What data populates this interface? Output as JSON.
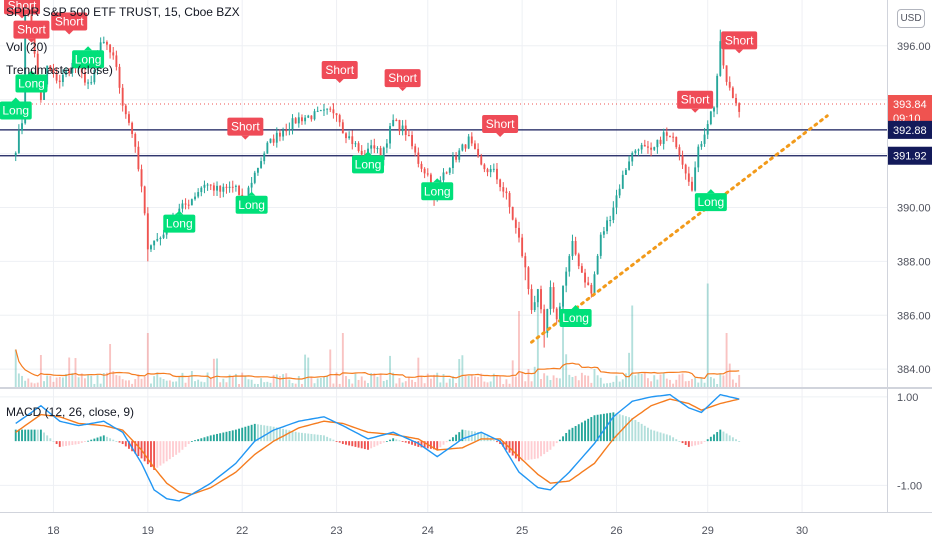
{
  "header": {
    "symbol_line": "SPDR S&P 500 ETF TRUST, 15, Cboe BZX",
    "volume_label": "Vol (20)",
    "indicator_label": "Trendmaster (close)",
    "macd_label": "MACD (12, 26, close, 9)",
    "currency_button": "USD"
  },
  "colors": {
    "up": "#26a69a",
    "down": "#ef5350",
    "long_badge": "#00e07a",
    "short_badge": "#ef4b57",
    "level_line": "#131a5a",
    "trend_line": "#f29a1a",
    "macd_line": "#2196f3",
    "signal_line": "#f57c1f",
    "volume_ma": "#f57c1f",
    "last_price": "#ef5350"
  },
  "chart_data": [
    {
      "type": "candlestick",
      "name": "price",
      "ylim": [
        383.3,
        397.7
      ],
      "y_ticks": [
        384,
        386,
        388,
        390,
        392,
        394,
        396
      ],
      "y_tick_labels": [
        "384.00",
        "386.00",
        "388.00",
        "390.00",
        "392.00",
        "394.00",
        "396.00"
      ],
      "x_labels": [
        "18",
        "19",
        "22",
        "23",
        "24",
        "25",
        "26",
        "29",
        "30"
      ],
      "x_label_index": [
        12,
        42,
        72,
        102,
        131,
        161,
        191,
        220,
        250
      ],
      "index_range": [
        -5,
        277
      ],
      "path": [
        [
          0,
          392.2
        ],
        [
          2,
          393.2
        ],
        [
          3,
          397.4
        ],
        [
          5,
          396.7
        ],
        [
          8,
          393.9
        ],
        [
          10,
          395.2
        ],
        [
          12,
          394.9
        ],
        [
          14,
          394.7
        ],
        [
          18,
          395.3
        ],
        [
          24,
          394.5
        ],
        [
          27,
          396.1
        ],
        [
          31,
          395.7
        ],
        [
          34,
          393.9
        ],
        [
          37,
          392.8
        ],
        [
          40,
          390.7
        ],
        [
          42,
          388.6
        ],
        [
          46,
          388.9
        ],
        [
          50,
          389.7
        ],
        [
          55,
          390.2
        ],
        [
          60,
          390.9
        ],
        [
          65,
          390.6
        ],
        [
          70,
          390.8
        ],
        [
          72,
          390.0
        ],
        [
          75,
          391.0
        ],
        [
          80,
          392.3
        ],
        [
          85,
          392.9
        ],
        [
          90,
          393.3
        ],
        [
          98,
          393.5
        ],
        [
          102,
          393.6
        ],
        [
          104,
          392.9
        ],
        [
          108,
          392.3
        ],
        [
          111,
          391.7
        ],
        [
          113,
          392.4
        ],
        [
          116,
          391.9
        ],
        [
          120,
          393.2
        ],
        [
          124,
          392.8
        ],
        [
          128,
          391.7
        ],
        [
          131,
          391.2
        ],
        [
          133,
          390.2
        ],
        [
          136,
          391.3
        ],
        [
          140,
          391.9
        ],
        [
          144,
          392.5
        ],
        [
          148,
          391.5
        ],
        [
          152,
          391.3
        ],
        [
          156,
          390.4
        ],
        [
          160,
          388.8
        ],
        [
          162,
          387.7
        ],
        [
          164,
          386.3
        ],
        [
          166,
          386.8
        ],
        [
          168,
          385.3
        ],
        [
          170,
          386.9
        ],
        [
          172,
          385.8
        ],
        [
          174,
          387.1
        ],
        [
          177,
          388.6
        ],
        [
          180,
          387.6
        ],
        [
          183,
          386.8
        ],
        [
          186,
          388.9
        ],
        [
          189,
          389.7
        ],
        [
          192,
          390.8
        ],
        [
          195,
          391.8
        ],
        [
          198,
          392.3
        ],
        [
          202,
          392.0
        ],
        [
          206,
          392.7
        ],
        [
          210,
          392.4
        ],
        [
          213,
          391.4
        ],
        [
          215,
          390.8
        ],
        [
          217,
          392.1
        ],
        [
          220,
          393.2
        ],
        [
          222,
          393.8
        ],
        [
          224,
          396.0
        ],
        [
          226,
          394.6
        ],
        [
          228,
          394.1
        ],
        [
          230,
          393.7
        ]
      ],
      "high_spikes": [
        [
          3,
          397.5
        ],
        [
          224,
          396.6
        ]
      ],
      "low_spikes": [
        [
          42,
          388.0
        ],
        [
          162,
          387.3
        ],
        [
          168,
          384.8
        ]
      ],
      "last_price": 393.84,
      "last_price_label": "393.84",
      "countdown": "09:10",
      "levels": [
        {
          "value": 392.88,
          "label": "392.88"
        },
        {
          "value": 391.92,
          "label": "391.92"
        }
      ],
      "trend_line": [
        [
          164,
          385.0
        ],
        [
          258,
          393.4
        ]
      ],
      "signals": [
        {
          "type": "short",
          "label": "Short",
          "i": 2,
          "price": 397.5
        },
        {
          "type": "short",
          "label": "Short",
          "i": 5,
          "price": 396.6
        },
        {
          "type": "short",
          "label": "Short",
          "i": 17,
          "price": 396.9
        },
        {
          "type": "long",
          "label": "Long",
          "i": 5,
          "price": 394.6
        },
        {
          "type": "long",
          "label": "Long",
          "i": 23,
          "price": 395.5
        },
        {
          "type": "long",
          "label": "Long",
          "i": 0,
          "price": 393.6
        },
        {
          "type": "long",
          "label": "Long",
          "i": 52,
          "price": 389.4
        },
        {
          "type": "long",
          "label": "Long",
          "i": 75,
          "price": 390.1
        },
        {
          "type": "short",
          "label": "Short",
          "i": 73,
          "price": 393.0
        },
        {
          "type": "short",
          "label": "Short",
          "i": 103,
          "price": 395.1
        },
        {
          "type": "long",
          "label": "Long",
          "i": 112,
          "price": 391.6
        },
        {
          "type": "short",
          "label": "Short",
          "i": 123,
          "price": 394.8
        },
        {
          "type": "long",
          "label": "Long",
          "i": 134,
          "price": 390.6
        },
        {
          "type": "short",
          "label": "Short",
          "i": 154,
          "price": 393.1
        },
        {
          "type": "long",
          "label": "Long",
          "i": 178,
          "price": 385.9
        },
        {
          "type": "short",
          "label": "Short",
          "i": 216,
          "price": 394.0
        },
        {
          "type": "long",
          "label": "Long",
          "i": 221,
          "price": 390.2
        },
        {
          "type": "short",
          "label": "Short",
          "i": 230,
          "price": 396.2
        }
      ]
    },
    {
      "type": "bar",
      "name": "volume",
      "high_volume_bars": [
        [
          0,
          0.35
        ],
        [
          8,
          0.3
        ],
        [
          30,
          0.4
        ],
        [
          42,
          0.5
        ],
        [
          100,
          0.35
        ],
        [
          104,
          0.5
        ],
        [
          160,
          0.7
        ],
        [
          166,
          0.85
        ],
        [
          174,
          0.75
        ],
        [
          196,
          0.75
        ],
        [
          220,
          0.95
        ],
        [
          226,
          0.5
        ]
      ],
      "base_level": 0.12
    },
    {
      "type": "line",
      "name": "macd",
      "ylim": [
        -1.6,
        1.2
      ],
      "y_ticks": [
        1.0,
        -1.0
      ],
      "y_tick_labels": [
        "1.00",
        "-1.00"
      ],
      "macd_path": [
        [
          0,
          0.4
        ],
        [
          8,
          0.8
        ],
        [
          14,
          0.45
        ],
        [
          20,
          0.35
        ],
        [
          28,
          0.45
        ],
        [
          34,
          0.2
        ],
        [
          40,
          -0.5
        ],
        [
          44,
          -1.1
        ],
        [
          48,
          -1.3
        ],
        [
          52,
          -1.35
        ],
        [
          56,
          -1.2
        ],
        [
          62,
          -0.95
        ],
        [
          70,
          -0.5
        ],
        [
          76,
          0.0
        ],
        [
          82,
          0.25
        ],
        [
          90,
          0.45
        ],
        [
          98,
          0.55
        ],
        [
          104,
          0.35
        ],
        [
          112,
          0.05
        ],
        [
          120,
          0.2
        ],
        [
          128,
          -0.05
        ],
        [
          134,
          -0.35
        ],
        [
          142,
          0.05
        ],
        [
          148,
          0.2
        ],
        [
          154,
          0.0
        ],
        [
          160,
          -0.7
        ],
        [
          166,
          -1.05
        ],
        [
          170,
          -1.1
        ],
        [
          176,
          -0.7
        ],
        [
          184,
          -0.05
        ],
        [
          190,
          0.55
        ],
        [
          196,
          0.9
        ],
        [
          202,
          1.0
        ],
        [
          208,
          1.05
        ],
        [
          214,
          0.75
        ],
        [
          218,
          0.65
        ],
        [
          224,
          1.05
        ],
        [
          230,
          0.95
        ]
      ],
      "signal_path": [
        [
          0,
          0.2
        ],
        [
          8,
          0.6
        ],
        [
          14,
          0.55
        ],
        [
          20,
          0.4
        ],
        [
          28,
          0.35
        ],
        [
          34,
          0.25
        ],
        [
          40,
          -0.2
        ],
        [
          44,
          -0.6
        ],
        [
          48,
          -0.95
        ],
        [
          52,
          -1.15
        ],
        [
          56,
          -1.2
        ],
        [
          62,
          -1.05
        ],
        [
          70,
          -0.7
        ],
        [
          76,
          -0.3
        ],
        [
          82,
          0.0
        ],
        [
          90,
          0.3
        ],
        [
          98,
          0.45
        ],
        [
          104,
          0.4
        ],
        [
          112,
          0.2
        ],
        [
          120,
          0.15
        ],
        [
          128,
          0.05
        ],
        [
          134,
          -0.2
        ],
        [
          142,
          -0.15
        ],
        [
          148,
          0.05
        ],
        [
          154,
          0.05
        ],
        [
          160,
          -0.35
        ],
        [
          166,
          -0.75
        ],
        [
          170,
          -0.95
        ],
        [
          176,
          -0.9
        ],
        [
          184,
          -0.5
        ],
        [
          190,
          0.05
        ],
        [
          196,
          0.5
        ],
        [
          202,
          0.8
        ],
        [
          208,
          0.95
        ],
        [
          214,
          0.85
        ],
        [
          218,
          0.7
        ],
        [
          224,
          0.85
        ],
        [
          230,
          0.95
        ]
      ]
    }
  ]
}
